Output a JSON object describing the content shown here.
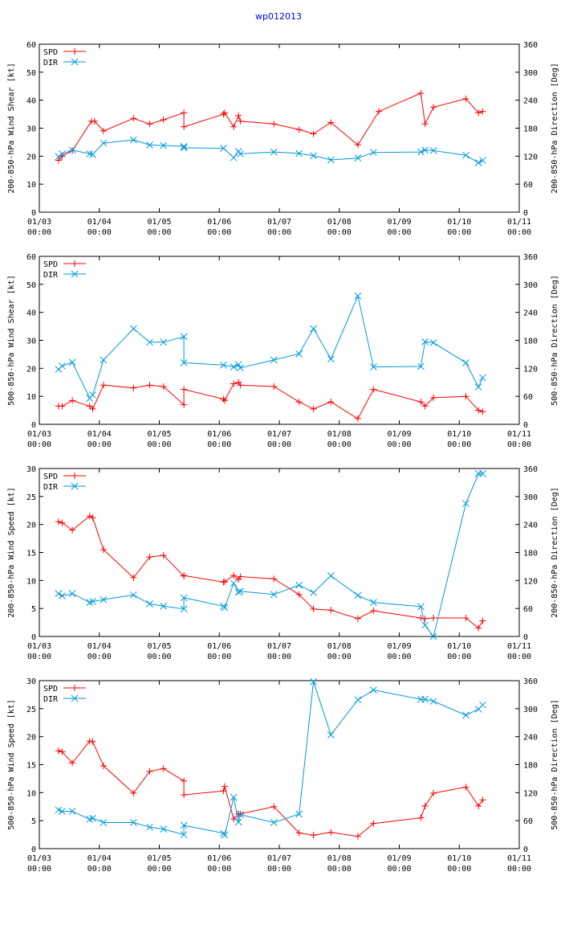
{
  "title": "wp012013",
  "colors": {
    "spd": "#ff0000",
    "dir": "#0099dd",
    "axis": "#000000",
    "title": "#0000ff"
  },
  "x_tick_labels": [
    {
      "date": "01/03",
      "time": "00:00"
    },
    {
      "date": "01/04",
      "time": "00:00"
    },
    {
      "date": "01/05",
      "time": "00:00"
    },
    {
      "date": "01/06",
      "time": "00:00"
    },
    {
      "date": "01/07",
      "time": "00:00"
    },
    {
      "date": "01/08",
      "time": "00:00"
    },
    {
      "date": "01/09",
      "time": "00:00"
    },
    {
      "date": "01/10",
      "time": "00:00"
    },
    {
      "date": "01/11",
      "time": "00:00"
    }
  ],
  "chart_data": [
    {
      "type": "line",
      "ylabel": "200-850-hPa Wind Shear [kt]",
      "y2label": "200-850-hPa Direction [Deg]",
      "ylim": [
        0,
        60
      ],
      "yticks": [
        0,
        10,
        20,
        30,
        40,
        50,
        60
      ],
      "y2lim": [
        0,
        360
      ],
      "y2ticks": [
        0,
        60,
        120,
        180,
        240,
        300,
        360
      ],
      "xlim": [
        0,
        8
      ],
      "legend": [
        "SPD",
        "DIR"
      ],
      "series": [
        {
          "name": "SPD",
          "axis": "left",
          "marker": "plus",
          "x": [
            0.32,
            0.38,
            0.55,
            0.87,
            0.92,
            1.07,
            1.57,
            1.84,
            2.07,
            2.41,
            2.41,
            3.07,
            3.09,
            3.24,
            3.32,
            3.35,
            3.91,
            4.33,
            4.57,
            4.86,
            5.31,
            5.66,
            6.36,
            6.43,
            6.57,
            7.11,
            7.32,
            7.39
          ],
          "y": [
            18.5,
            20,
            22,
            32.5,
            32.5,
            29,
            33.5,
            31.5,
            33,
            35.5,
            30.5,
            35,
            35.5,
            30.5,
            34.5,
            32.5,
            31.5,
            29.5,
            28,
            32,
            24,
            36,
            42.5,
            31.5,
            37.5,
            40.5,
            35.5,
            36
          ]
        },
        {
          "name": "DIR",
          "axis": "right",
          "marker": "x",
          "x": [
            0.32,
            0.38,
            0.55,
            0.84,
            0.89,
            1.07,
            1.57,
            1.84,
            2.07,
            2.41,
            2.41,
            3.07,
            3.24,
            3.32,
            3.35,
            3.91,
            4.33,
            4.57,
            4.86,
            5.31,
            5.57,
            6.36,
            6.43,
            6.57,
            7.11,
            7.32,
            7.39
          ],
          "y": [
            119,
            125,
            133,
            125,
            124,
            148,
            155,
            144,
            143,
            141,
            138,
            137,
            117,
            130,
            125,
            129,
            126,
            121,
            112,
            116,
            128,
            129,
            133,
            132,
            122,
            106,
            111
          ]
        }
      ]
    },
    {
      "type": "line",
      "ylabel": "500-850-hPa Wind Shear [kt]",
      "y2label": "500-850-hPa Direction [Deg]",
      "ylim": [
        0,
        60
      ],
      "yticks": [
        0,
        10,
        20,
        30,
        40,
        50,
        60
      ],
      "y2lim": [
        0,
        360
      ],
      "y2ticks": [
        0,
        60,
        120,
        180,
        240,
        300,
        360
      ],
      "xlim": [
        0,
        8
      ],
      "legend": [
        "SPD",
        "DIR"
      ],
      "series": [
        {
          "name": "SPD",
          "axis": "left",
          "marker": "plus",
          "x": [
            0.32,
            0.38,
            0.55,
            0.84,
            0.89,
            1.07,
            1.57,
            1.84,
            2.07,
            2.41,
            2.41,
            3.07,
            3.09,
            3.24,
            3.32,
            3.35,
            3.91,
            4.33,
            4.57,
            4.86,
            5.31,
            5.57,
            6.36,
            6.43,
            6.57,
            7.11,
            7.32,
            7.39
          ],
          "y": [
            6.5,
            6.5,
            8.5,
            6.5,
            5.5,
            14,
            13,
            14,
            13.5,
            7,
            12.5,
            9,
            8.5,
            14.5,
            15,
            14,
            13.5,
            8,
            5.5,
            8,
            2,
            12.5,
            8,
            6.5,
            9.5,
            10,
            5,
            4.5
          ]
        },
        {
          "name": "DIR",
          "axis": "right",
          "marker": "x",
          "x": [
            0.32,
            0.38,
            0.55,
            0.84,
            0.89,
            1.07,
            1.57,
            1.84,
            2.07,
            2.41,
            2.41,
            3.07,
            3.24,
            3.32,
            3.35,
            3.91,
            4.33,
            4.57,
            4.86,
            5.31,
            5.57,
            6.36,
            6.43,
            6.57,
            7.11,
            7.32,
            7.39
          ],
          "y": [
            118,
            125,
            133,
            56,
            63,
            138,
            205,
            176,
            176,
            188,
            132,
            127,
            123,
            128,
            121,
            138,
            151,
            205,
            140,
            275,
            123,
            124,
            177,
            175,
            132,
            80,
            100
          ]
        }
      ]
    },
    {
      "type": "line",
      "ylabel": "200-850-hPa Wind Speed [kt]",
      "y2label": "200-850-hPa Direction [Deg]",
      "ylim": [
        0,
        30
      ],
      "yticks": [
        0,
        5,
        10,
        15,
        20,
        25,
        30
      ],
      "y2lim": [
        0,
        360
      ],
      "y2ticks": [
        0,
        60,
        120,
        180,
        240,
        300,
        360
      ],
      "xlim": [
        0,
        8
      ],
      "legend": [
        "SPD",
        "DIR"
      ],
      "series": [
        {
          "name": "SPD",
          "axis": "left",
          "marker": "plus",
          "x": [
            0.32,
            0.38,
            0.55,
            0.84,
            0.89,
            1.07,
            1.57,
            1.84,
            2.07,
            2.41,
            2.41,
            3.07,
            3.09,
            3.24,
            3.32,
            3.35,
            3.91,
            4.33,
            4.57,
            4.86,
            5.31,
            5.57,
            6.36,
            6.43,
            6.57,
            7.11,
            7.32,
            7.39
          ],
          "y": [
            20.5,
            20.3,
            19,
            21.5,
            21.2,
            15.5,
            10.5,
            14.2,
            14.5,
            10.8,
            10.9,
            9.7,
            9.8,
            10.9,
            10.2,
            10.7,
            10.3,
            7.5,
            4.9,
            4.7,
            3.2,
            4.6,
            3.3,
            3.2,
            3.3,
            3.3,
            1.5,
            2.8
          ]
        },
        {
          "name": "DIR",
          "axis": "right",
          "marker": "x",
          "x": [
            0.32,
            0.38,
            0.55,
            0.84,
            0.89,
            1.07,
            1.57,
            1.84,
            2.07,
            2.41,
            2.41,
            3.07,
            3.09,
            3.24,
            3.32,
            3.35,
            3.91,
            4.33,
            4.57,
            4.86,
            5.31,
            5.57,
            6.36,
            6.43,
            6.57,
            7.11,
            7.32,
            7.39
          ],
          "y": [
            92,
            87,
            92,
            73,
            75,
            79,
            89,
            70,
            65,
            59,
            83,
            65,
            62,
            114,
            95,
            97,
            90,
            110,
            94,
            130,
            88,
            73,
            64,
            24,
            0,
            285,
            349,
            349
          ]
        }
      ]
    },
    {
      "type": "line",
      "ylabel": "500-850-hPa Wind Speed [kt]",
      "y2label": "500-850-hPa Direction [Deg]",
      "ylim": [
        0,
        30
      ],
      "yticks": [
        0,
        5,
        10,
        15,
        20,
        25,
        30
      ],
      "y2lim": [
        0,
        360
      ],
      "y2ticks": [
        0,
        60,
        120,
        180,
        240,
        300,
        360
      ],
      "xlim": [
        0,
        8
      ],
      "legend": [
        "SPD",
        "DIR"
      ],
      "series": [
        {
          "name": "SPD",
          "axis": "left",
          "marker": "plus",
          "x": [
            0.32,
            0.38,
            0.55,
            0.84,
            0.89,
            1.07,
            1.57,
            1.84,
            2.07,
            2.41,
            2.41,
            3.07,
            3.09,
            3.24,
            3.32,
            3.35,
            3.91,
            4.33,
            4.57,
            4.86,
            5.31,
            5.57,
            6.36,
            6.43,
            6.57,
            7.11,
            7.32,
            7.39
          ],
          "y": [
            17.5,
            17.3,
            15.3,
            19.2,
            19.1,
            14.8,
            9.9,
            13.8,
            14.3,
            12.1,
            9.6,
            10.3,
            11.1,
            5.3,
            6.2,
            6.2,
            7.5,
            2.8,
            2.4,
            2.9,
            2.2,
            4.5,
            5.5,
            7.6,
            9.9,
            11,
            7.6,
            8.7
          ]
        },
        {
          "name": "DIR",
          "axis": "right",
          "marker": "x",
          "x": [
            0.32,
            0.38,
            0.55,
            0.84,
            0.89,
            1.07,
            1.57,
            1.84,
            2.07,
            2.41,
            2.41,
            3.07,
            3.09,
            3.24,
            3.32,
            3.35,
            3.91,
            4.33,
            4.57,
            4.86,
            5.31,
            5.57,
            6.36,
            6.43,
            6.57,
            7.11,
            7.32,
            7.39
          ],
          "y": [
            83,
            80,
            80,
            63,
            65,
            56,
            56,
            46,
            42,
            30,
            50,
            33,
            29,
            110,
            57,
            73,
            56,
            74,
            358,
            244,
            319,
            340,
            320,
            320,
            316,
            286,
            299,
            308
          ]
        }
      ]
    }
  ]
}
